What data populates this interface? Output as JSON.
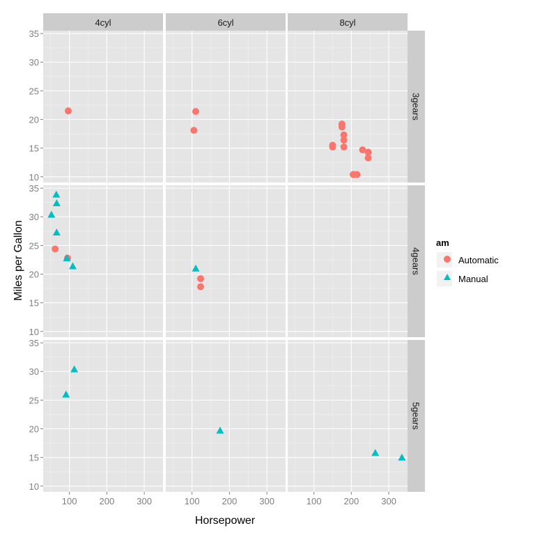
{
  "chart_data": {
    "type": "scatter",
    "title": "",
    "xlabel": "Horsepower",
    "ylabel": "Miles per Gallon",
    "xlim": [
      30,
      350
    ],
    "ylim": [
      9,
      35.5
    ],
    "x_ticks": [
      100,
      200,
      300
    ],
    "y_ticks": [
      10,
      15,
      20,
      25,
      30,
      35
    ],
    "grid": true,
    "facet_columns": [
      "4cyl",
      "6cyl",
      "8cyl"
    ],
    "facet_rows": [
      "3gears",
      "4gears",
      "5gears"
    ],
    "legend": {
      "title": "am",
      "position": "right",
      "entries": [
        {
          "label": "Automatic",
          "shape": "circle",
          "color": "#F8766D"
        },
        {
          "label": "Manual",
          "shape": "triangle",
          "color": "#00BFC4"
        }
      ]
    },
    "series": [
      {
        "name": "Automatic",
        "points": [
          {
            "col": 0,
            "row": 0,
            "x": 97,
            "y": 21.5
          },
          {
            "col": 1,
            "row": 0,
            "x": 110,
            "y": 21.4
          },
          {
            "col": 1,
            "row": 0,
            "x": 105,
            "y": 18.1
          },
          {
            "col": 2,
            "row": 0,
            "x": 175,
            "y": 19.2
          },
          {
            "col": 2,
            "row": 0,
            "x": 175,
            "y": 18.7
          },
          {
            "col": 2,
            "row": 0,
            "x": 180,
            "y": 17.3
          },
          {
            "col": 2,
            "row": 0,
            "x": 180,
            "y": 16.4
          },
          {
            "col": 2,
            "row": 0,
            "x": 150,
            "y": 15.5
          },
          {
            "col": 2,
            "row": 0,
            "x": 150,
            "y": 15.2
          },
          {
            "col": 2,
            "row": 0,
            "x": 180,
            "y": 15.2
          },
          {
            "col": 2,
            "row": 0,
            "x": 230,
            "y": 14.7
          },
          {
            "col": 2,
            "row": 0,
            "x": 245,
            "y": 14.3
          },
          {
            "col": 2,
            "row": 0,
            "x": 245,
            "y": 13.3
          },
          {
            "col": 2,
            "row": 0,
            "x": 205,
            "y": 10.4
          },
          {
            "col": 2,
            "row": 0,
            "x": 215,
            "y": 10.4
          },
          {
            "col": 0,
            "row": 1,
            "x": 62,
            "y": 24.4
          },
          {
            "col": 0,
            "row": 1,
            "x": 95,
            "y": 22.8
          },
          {
            "col": 1,
            "row": 1,
            "x": 123,
            "y": 19.2
          },
          {
            "col": 1,
            "row": 1,
            "x": 123,
            "y": 17.8
          }
        ]
      },
      {
        "name": "Manual",
        "points": [
          {
            "col": 0,
            "row": 1,
            "x": 65,
            "y": 33.9
          },
          {
            "col": 0,
            "row": 1,
            "x": 66,
            "y": 32.4
          },
          {
            "col": 0,
            "row": 1,
            "x": 52,
            "y": 30.4
          },
          {
            "col": 0,
            "row": 1,
            "x": 66,
            "y": 27.3
          },
          {
            "col": 0,
            "row": 1,
            "x": 93,
            "y": 22.8
          },
          {
            "col": 0,
            "row": 1,
            "x": 109,
            "y": 21.4
          },
          {
            "col": 1,
            "row": 1,
            "x": 110,
            "y": 21.0
          },
          {
            "col": 0,
            "row": 2,
            "x": 113,
            "y": 30.4
          },
          {
            "col": 0,
            "row": 2,
            "x": 91,
            "y": 26.0
          },
          {
            "col": 1,
            "row": 2,
            "x": 175,
            "y": 19.7
          },
          {
            "col": 2,
            "row": 2,
            "x": 264,
            "y": 15.8
          },
          {
            "col": 2,
            "row": 2,
            "x": 335,
            "y": 15.0
          }
        ]
      }
    ]
  }
}
